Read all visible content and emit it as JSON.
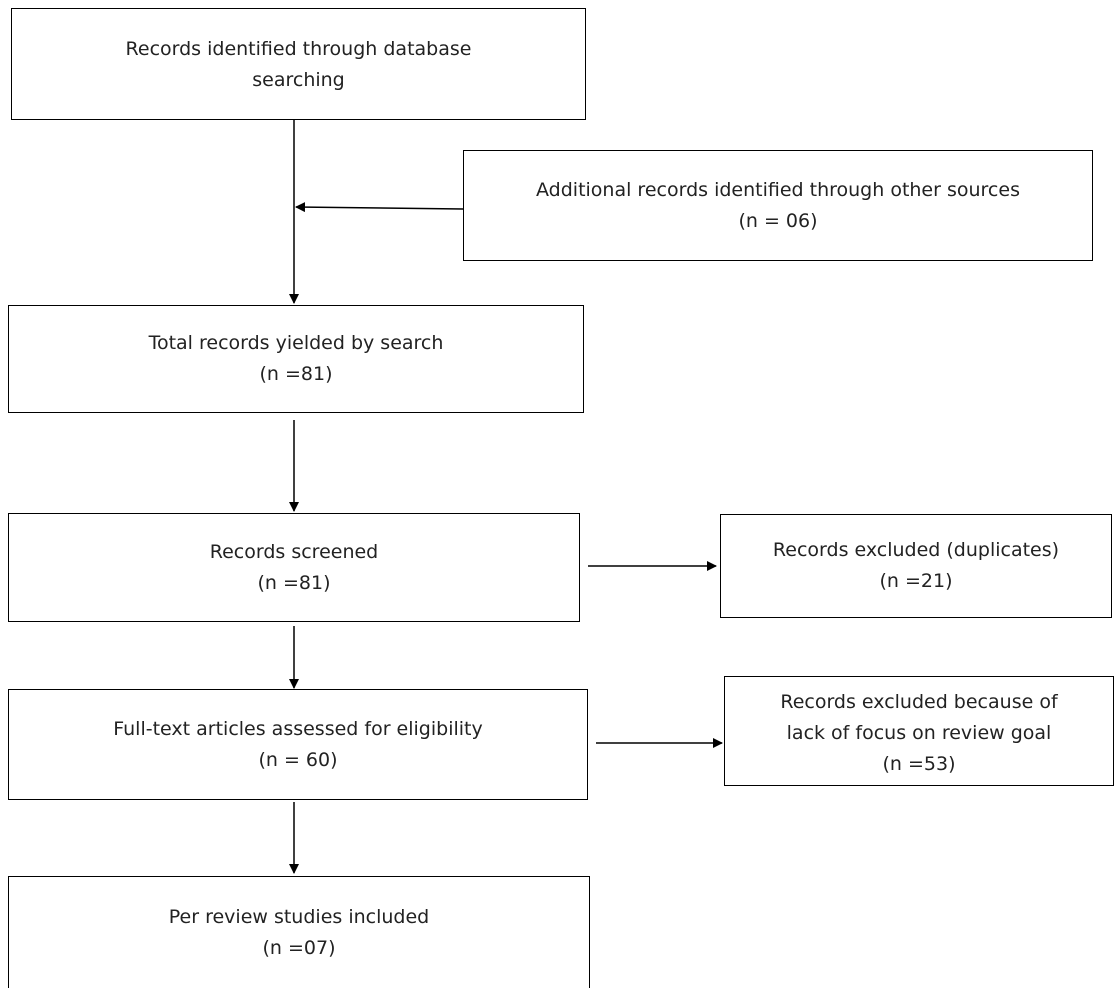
{
  "flow": {
    "database_search": {
      "lines": [
        "Records identified through database",
        "searching"
      ]
    },
    "other_sources": {
      "lines": [
        "Additional records identified through other sources"
      ],
      "count": "(n = 06)"
    },
    "total_records": {
      "lines": [
        "Total records yielded by search"
      ],
      "count": "(n =81)"
    },
    "screened": {
      "lines": [
        "Records screened"
      ],
      "count": "(n =81)"
    },
    "excluded_duplicates": {
      "lines": [
        "Records excluded (duplicates)"
      ],
      "count": "(n =21)"
    },
    "full_text": {
      "lines": [
        "Full-text articles assessed for eligibility"
      ],
      "count": "(n = 60)"
    },
    "excluded_focus": {
      "lines": [
        "Records excluded because of",
        "lack of focus on review goal"
      ],
      "count": "(n =53)"
    },
    "included": {
      "lines": [
        "Per review studies included"
      ],
      "count": "(n =07)"
    }
  }
}
